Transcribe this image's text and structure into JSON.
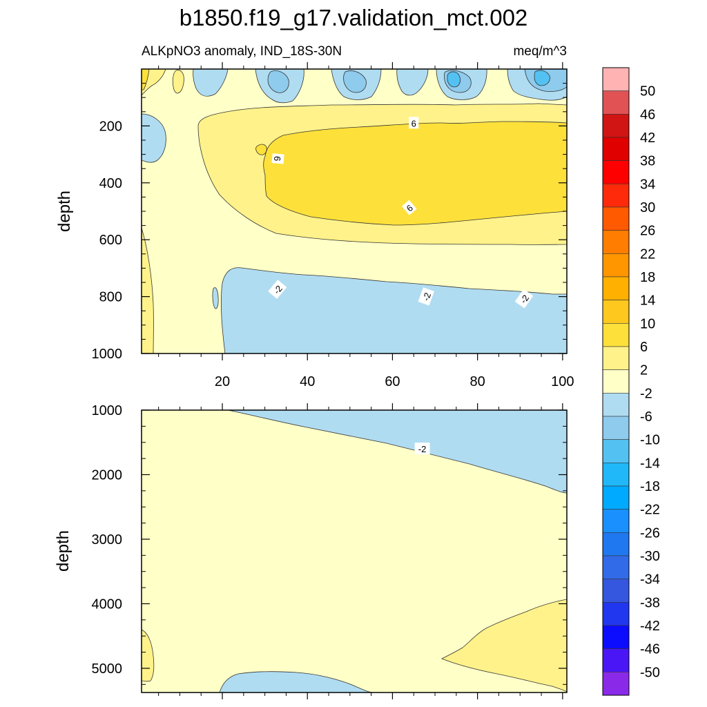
{
  "chart_data": {
    "type": "contour",
    "title": "b1850.f19_g17.validation_mct.002",
    "subtitle_left": "ALKpNO3 anomaly, IND_18S-30N",
    "subtitle_right": "meq/m^3",
    "colorbar": {
      "labels": [
        "50",
        "46",
        "42",
        "38",
        "34",
        "30",
        "26",
        "22",
        "18",
        "14",
        "10",
        "6",
        "2",
        "-2",
        "-6",
        "-10",
        "-14",
        "-18",
        "-22",
        "-26",
        "-30",
        "-34",
        "-38",
        "-42",
        "-46",
        "-50"
      ],
      "colors": [
        "#ffb3b3",
        "#e15255",
        "#d11414",
        "#e00000",
        "#ff0000",
        "#ff2a0a",
        "#ff5a00",
        "#ff7d00",
        "#ff9600",
        "#ffb000",
        "#ffc81e",
        "#fde03a",
        "#fff28a",
        "#ffffc8",
        "#b0dcf1",
        "#8ecbed",
        "#53c2f2",
        "#20b8f8",
        "#00aaff",
        "#1a90ff",
        "#1f78f0",
        "#326be8",
        "#3557df",
        "#2137ef",
        "#0c0cff",
        "#4a16f5",
        "#8a2ae8"
      ]
    },
    "panels": [
      {
        "name": "upper",
        "ylabel": "depth",
        "ylim": [
          1000,
          0
        ],
        "yticks": [
          "200",
          "400",
          "600",
          "800",
          "1000"
        ],
        "ytick_values": [
          200,
          400,
          600,
          800,
          1000
        ],
        "xlim": [
          1,
          101
        ],
        "xticks": [
          "20",
          "40",
          "60",
          "80",
          "100"
        ],
        "xtick_values": [
          20,
          40,
          60,
          80,
          100
        ],
        "contour_labels": [
          {
            "text": "6",
            "x": 65,
            "y": 190,
            "rot": 0
          },
          {
            "text": "6",
            "x": 33,
            "y": 315,
            "rot": 95
          },
          {
            "text": "6",
            "x": 64,
            "y": 488,
            "rot": -40
          },
          {
            "text": "-2",
            "x": 33,
            "y": 775,
            "rot": -50
          },
          {
            "text": "-2",
            "x": 68,
            "y": 800,
            "rot": -70
          },
          {
            "text": "-2",
            "x": 91,
            "y": 808,
            "rot": -55
          }
        ]
      },
      {
        "name": "lower",
        "ylabel": "depth",
        "ylim": [
          5375,
          1000
        ],
        "yticks": [
          "1000",
          "2000",
          "3000",
          "4000",
          "5000"
        ],
        "ytick_values": [
          1000,
          2000,
          3000,
          4000,
          5000
        ],
        "xlim": [
          1,
          101
        ],
        "contour_labels": [
          {
            "text": "-2",
            "x": 67,
            "y": 1600,
            "rot": 0
          }
        ]
      }
    ]
  }
}
